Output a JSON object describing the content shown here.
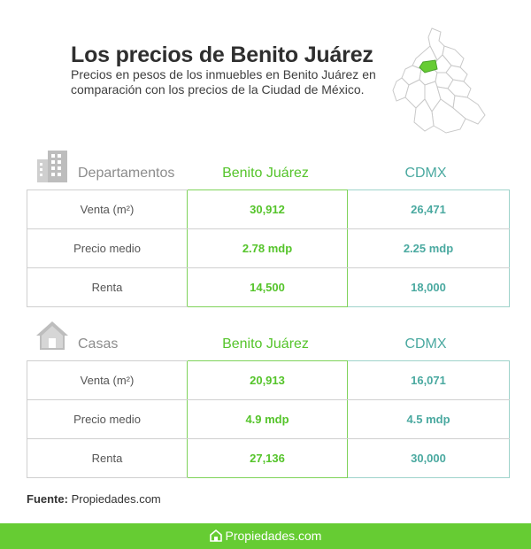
{
  "header": {
    "title": "Los precios de Benito Juárez",
    "subtitle": "Precios en pesos de los inmuebles en Benito Juárez en comparación con los precios de la Ciudad de México."
  },
  "colors": {
    "green": "#55c42b",
    "teal": "#4aa9a0",
    "footer_bg": "#66cc33"
  },
  "sections": [
    {
      "label": "Departamentos",
      "icon": "building-icon",
      "col_bj": "Benito Juárez",
      "col_cdmx": "CDMX",
      "rows": [
        {
          "label": "Venta (m²)",
          "bj": "30,912",
          "cdmx": "26,471"
        },
        {
          "label": "Precio medio",
          "bj": "2.78 mdp",
          "cdmx": "2.25 mdp"
        },
        {
          "label": "Renta",
          "bj": "14,500",
          "cdmx": "18,000"
        }
      ]
    },
    {
      "label": "Casas",
      "icon": "house-icon",
      "col_bj": "Benito Juárez",
      "col_cdmx": "CDMX",
      "rows": [
        {
          "label": "Venta (m²)",
          "bj": "20,913",
          "cdmx": "16,071"
        },
        {
          "label": "Precio medio",
          "bj": "4.9 mdp",
          "cdmx": "4.5 mdp"
        },
        {
          "label": "Renta",
          "bj": "27,136",
          "cdmx": "30,000"
        }
      ]
    }
  ],
  "source": {
    "prefix": "Fuente:",
    "value": "Propiedades.com"
  },
  "footer": {
    "brand": "Propiedades.com",
    "icon": "propiedades-logo-icon"
  }
}
